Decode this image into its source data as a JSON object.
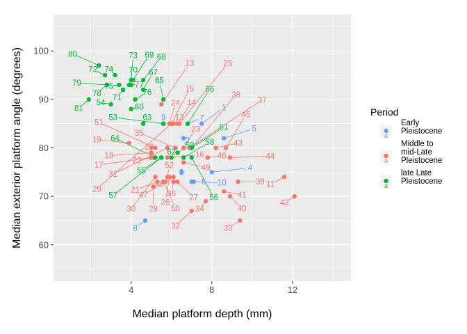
{
  "chart_data": {
    "type": "scatter",
    "xlabel": "Median platform depth (mm)",
    "ylabel": "Median exterior platform angle (degrees)",
    "xlim": [
      0.15,
      14.9
    ],
    "ylim": [
      52.5,
      107.5
    ],
    "xticks": [
      4,
      8,
      12
    ],
    "yticks": [
      60,
      70,
      80,
      90,
      100
    ],
    "grid": true,
    "legend": {
      "title": "Period",
      "position": "right",
      "entries": [
        {
          "key": "early",
          "lines": [
            "Early",
            "Pleistocene"
          ]
        },
        {
          "key": "middle",
          "lines": [
            "Middle to",
            "mid-Late",
            "Pleistocene"
          ]
        },
        {
          "key": "late",
          "lines": [
            "late Late",
            "Pleistocene"
          ]
        }
      ]
    },
    "colors": {
      "early": "#619CFF",
      "middle": "#F8766D",
      "late": "#00BA38"
    },
    "series": [
      {
        "name": "Early Pleistocene",
        "key": "early",
        "points": [
          {
            "label": "1",
            "x": 7.5,
            "y": 85,
            "lx": 8.6,
            "ly": 88.3
          },
          {
            "label": "2",
            "x": 6.6,
            "y": 82,
            "lx": 6.8,
            "ly": 81.6
          },
          {
            "label": "3",
            "x": 6.5,
            "y": 75,
            "lx": 6.5,
            "ly": 75
          },
          {
            "label": "4",
            "x": 8.0,
            "y": 75,
            "lx": 9.9,
            "ly": 75.9
          },
          {
            "label": "5",
            "x": 8.6,
            "y": 82,
            "lx": 10.1,
            "ly": 84
          },
          {
            "label": "6",
            "x": 7.0,
            "y": 73,
            "lx": 7.6,
            "ly": 73
          },
          {
            "label": "7",
            "x": 6.8,
            "y": 85,
            "lx": 7.5,
            "ly": 86.2
          },
          {
            "label": "8",
            "x": 4.7,
            "y": 65,
            "lx": 4.2,
            "ly": 63.5
          },
          {
            "label": "9",
            "x": 5.6,
            "y": 85,
            "lx": 5.6,
            "ly": 86.3
          },
          {
            "label": "10",
            "x": 7.1,
            "y": 73,
            "lx": 8.5,
            "ly": 72.8
          }
        ]
      },
      {
        "name": "Middle to mid-Late Pleistocene",
        "key": "middle",
        "points": [
          {
            "label": "11",
            "x": 11.6,
            "y": 74,
            "lx": 10.9,
            "ly": 72.5
          },
          {
            "label": "12",
            "x": 6.1,
            "y": 85,
            "lx": 6.4,
            "ly": 86.3
          },
          {
            "label": "13",
            "x": 5.5,
            "y": 89,
            "lx": 6.9,
            "ly": 97.5
          },
          {
            "label": "14",
            "x": 6.3,
            "y": 85,
            "lx": 7.0,
            "ly": 89.4
          },
          {
            "label": "15",
            "x": 6.0,
            "y": 85,
            "lx": 6.9,
            "ly": 92.2
          },
          {
            "label": "16",
            "x": 5.8,
            "y": 78,
            "lx": 7.4,
            "ly": 78.6
          },
          {
            "label": "17",
            "x": 5.0,
            "y": 78,
            "lx": 2.4,
            "ly": 76.5
          },
          {
            "label": "18",
            "x": 5.0,
            "y": 79,
            "lx": 2.9,
            "ly": 78.4
          },
          {
            "label": "19",
            "x": 3.9,
            "y": 81,
            "lx": 2.3,
            "ly": 81.7
          },
          {
            "label": "20",
            "x": 5.0,
            "y": 80,
            "lx": 4.9,
            "ly": 80.2
          },
          {
            "label": "21",
            "x": 5.3,
            "y": 73,
            "lx": 4.2,
            "ly": 71.3
          },
          {
            "label": "22",
            "x": 5.1,
            "y": 78,
            "lx": 4.3,
            "ly": 77.4
          },
          {
            "label": "23",
            "x": 6.6,
            "y": 80,
            "lx": 7.2,
            "ly": 83.9
          },
          {
            "label": "24",
            "x": 5.9,
            "y": 85,
            "lx": 6.2,
            "ly": 89.3
          },
          {
            "label": "25",
            "x": 6.4,
            "y": 85,
            "lx": 8.8,
            "ly": 97.5
          },
          {
            "label": "26",
            "x": 5.9,
            "y": 74,
            "lx": 5.7,
            "ly": 68.8
          },
          {
            "label": "27",
            "x": 6.3,
            "y": 73,
            "lx": 7.1,
            "ly": 69.8
          },
          {
            "label": "28",
            "x": 5.1,
            "y": 72,
            "lx": 5.1,
            "ly": 67.4
          },
          {
            "label": "29",
            "x": 6.0,
            "y": 85,
            "lx": 2.3,
            "ly": 71.5
          },
          {
            "label": "30",
            "x": 5.2,
            "y": 74,
            "lx": 4.0,
            "ly": 67.4
          },
          {
            "label": "31",
            "x": 5.8,
            "y": 80,
            "lx": 3.1,
            "ly": 74.6
          },
          {
            "label": "32",
            "x": 7.0,
            "y": 67,
            "lx": 6.2,
            "ly": 63.9
          },
          {
            "label": "33",
            "x": 9.4,
            "y": 65,
            "lx": 8.8,
            "ly": 63.5
          },
          {
            "label": "34",
            "x": 7.7,
            "y": 69,
            "lx": 7.4,
            "ly": 67.4
          },
          {
            "label": "35",
            "x": 6.2,
            "y": 80,
            "lx": 4.4,
            "ly": 83.1
          },
          {
            "label": "36",
            "x": 6.1,
            "y": 73,
            "lx": 6.0,
            "ly": 70.6
          },
          {
            "label": "37",
            "x": 6.9,
            "y": 80,
            "lx": 10.5,
            "ly": 89.9
          },
          {
            "label": "38",
            "x": 7.0,
            "y": 80,
            "lx": 9.2,
            "ly": 91
          },
          {
            "label": "39",
            "x": 9.3,
            "y": 73,
            "lx": 10.4,
            "ly": 73
          },
          {
            "label": "40",
            "x": 8.9,
            "y": 70,
            "lx": 9.5,
            "ly": 67.5
          },
          {
            "label": "41",
            "x": 8.6,
            "y": 71,
            "lx": 9.5,
            "ly": 70.3
          },
          {
            "label": "42",
            "x": 12.1,
            "y": 70,
            "lx": 11.6,
            "ly": 68.7
          },
          {
            "label": "43",
            "x": 8.2,
            "y": 80,
            "lx": 9.3,
            "ly": 81
          },
          {
            "label": "44",
            "x": 8.9,
            "y": 78,
            "lx": 10.9,
            "ly": 78.3
          },
          {
            "label": "45",
            "x": 8.7,
            "y": 80,
            "lx": 9.7,
            "ly": 86.9
          },
          {
            "label": "46",
            "x": 7.8,
            "y": 78,
            "lx": 8.5,
            "ly": 78.4
          },
          {
            "label": "47",
            "x": 6.1,
            "y": 74,
            "lx": 4.6,
            "ly": 70.3
          },
          {
            "label": "48",
            "x": 5.7,
            "y": 73,
            "lx": 5.4,
            "ly": 72.5
          },
          {
            "label": "49",
            "x": 6.6,
            "y": 77,
            "lx": 7.7,
            "ly": 75.9
          },
          {
            "label": "50",
            "x": 5.6,
            "y": 73,
            "lx": 6.2,
            "ly": 67.5
          },
          {
            "label": "51",
            "x": 5.2,
            "y": 80,
            "lx": 2.4,
            "ly": 85.3
          },
          {
            "label": "52",
            "x": 5.8,
            "y": 74,
            "lx": 5.9,
            "ly": 76.4
          }
        ]
      },
      {
        "name": "late Late Pleistocene",
        "key": "late",
        "points": [
          {
            "label": "53",
            "x": 5.6,
            "y": 85,
            "lx": 3.1,
            "ly": 86.3
          },
          {
            "label": "54",
            "x": 3.0,
            "y": 89,
            "lx": 2.5,
            "ly": 89.4
          },
          {
            "label": "55",
            "x": 5.5,
            "y": 78,
            "lx": 4.5,
            "ly": 75.3
          },
          {
            "label": "56",
            "x": 7.0,
            "y": 78,
            "lx": 8.1,
            "ly": 69.8
          },
          {
            "label": "57",
            "x": 5.5,
            "y": 78,
            "lx": 3.1,
            "ly": 70.2
          },
          {
            "label": "58",
            "x": 6.6,
            "y": 78,
            "lx": 7.9,
            "ly": 81.2
          },
          {
            "label": "59",
            "x": 6.3,
            "y": 79,
            "lx": 6.9,
            "ly": 80.6
          },
          {
            "label": "60",
            "x": 4.0,
            "y": 88,
            "lx": 4.4,
            "ly": 88.5
          },
          {
            "label": "61",
            "x": 7.0,
            "y": 80,
            "lx": 8.6,
            "ly": 84.3
          },
          {
            "label": "62",
            "x": 6.0,
            "y": 78,
            "lx": 6.0,
            "ly": 79.2
          },
          {
            "label": "63",
            "x": 4.6,
            "y": 85,
            "lx": 4.8,
            "ly": 86.3
          },
          {
            "label": "64",
            "x": 5.2,
            "y": 78,
            "lx": 3.2,
            "ly": 82
          },
          {
            "label": "65",
            "x": 5.6,
            "y": 90,
            "lx": 5.4,
            "ly": 93.9
          },
          {
            "label": "66",
            "x": 6.8,
            "y": 85,
            "lx": 7.9,
            "ly": 92.1
          },
          {
            "label": "67",
            "x": 4.6,
            "y": 92,
            "lx": 5.1,
            "ly": 95.6
          },
          {
            "label": "68",
            "x": 4.6,
            "y": 94,
            "lx": 5.5,
            "ly": 98.8
          },
          {
            "label": "69",
            "x": 4.1,
            "y": 94,
            "lx": 4.9,
            "ly": 99.2
          },
          {
            "label": "70",
            "x": 3.9,
            "y": 93,
            "lx": 4.1,
            "ly": 96.1
          },
          {
            "label": "71",
            "x": 3.6,
            "y": 92,
            "lx": 3.3,
            "ly": 90.4
          },
          {
            "label": "72",
            "x": 2.7,
            "y": 95,
            "lx": 2.1,
            "ly": 96.2
          },
          {
            "label": "73",
            "x": 4.0,
            "y": 94,
            "lx": 4.1,
            "ly": 99.1
          },
          {
            "label": "74",
            "x": 3.2,
            "y": 95,
            "lx": 2.9,
            "ly": 96.2
          },
          {
            "label": "75",
            "x": 3.4,
            "y": 93,
            "lx": 2.9,
            "ly": 92.8
          },
          {
            "label": "76",
            "x": 4.2,
            "y": 90,
            "lx": 4.8,
            "ly": 91.5
          },
          {
            "label": "77",
            "x": 4.0,
            "y": 93,
            "lx": 4.4,
            "ly": 93.1
          },
          {
            "label": "78",
            "x": 2.8,
            "y": 93,
            "lx": 2.3,
            "ly": 91.3
          },
          {
            "label": "79",
            "x": 2.8,
            "y": 93,
            "lx": 1.3,
            "ly": 93.4
          },
          {
            "label": "80",
            "x": 2.4,
            "y": 97,
            "lx": 1.1,
            "ly": 99.4
          },
          {
            "label": "81",
            "x": 1.9,
            "y": 90,
            "lx": 1.4,
            "ly": 88.2
          }
        ]
      }
    ]
  }
}
